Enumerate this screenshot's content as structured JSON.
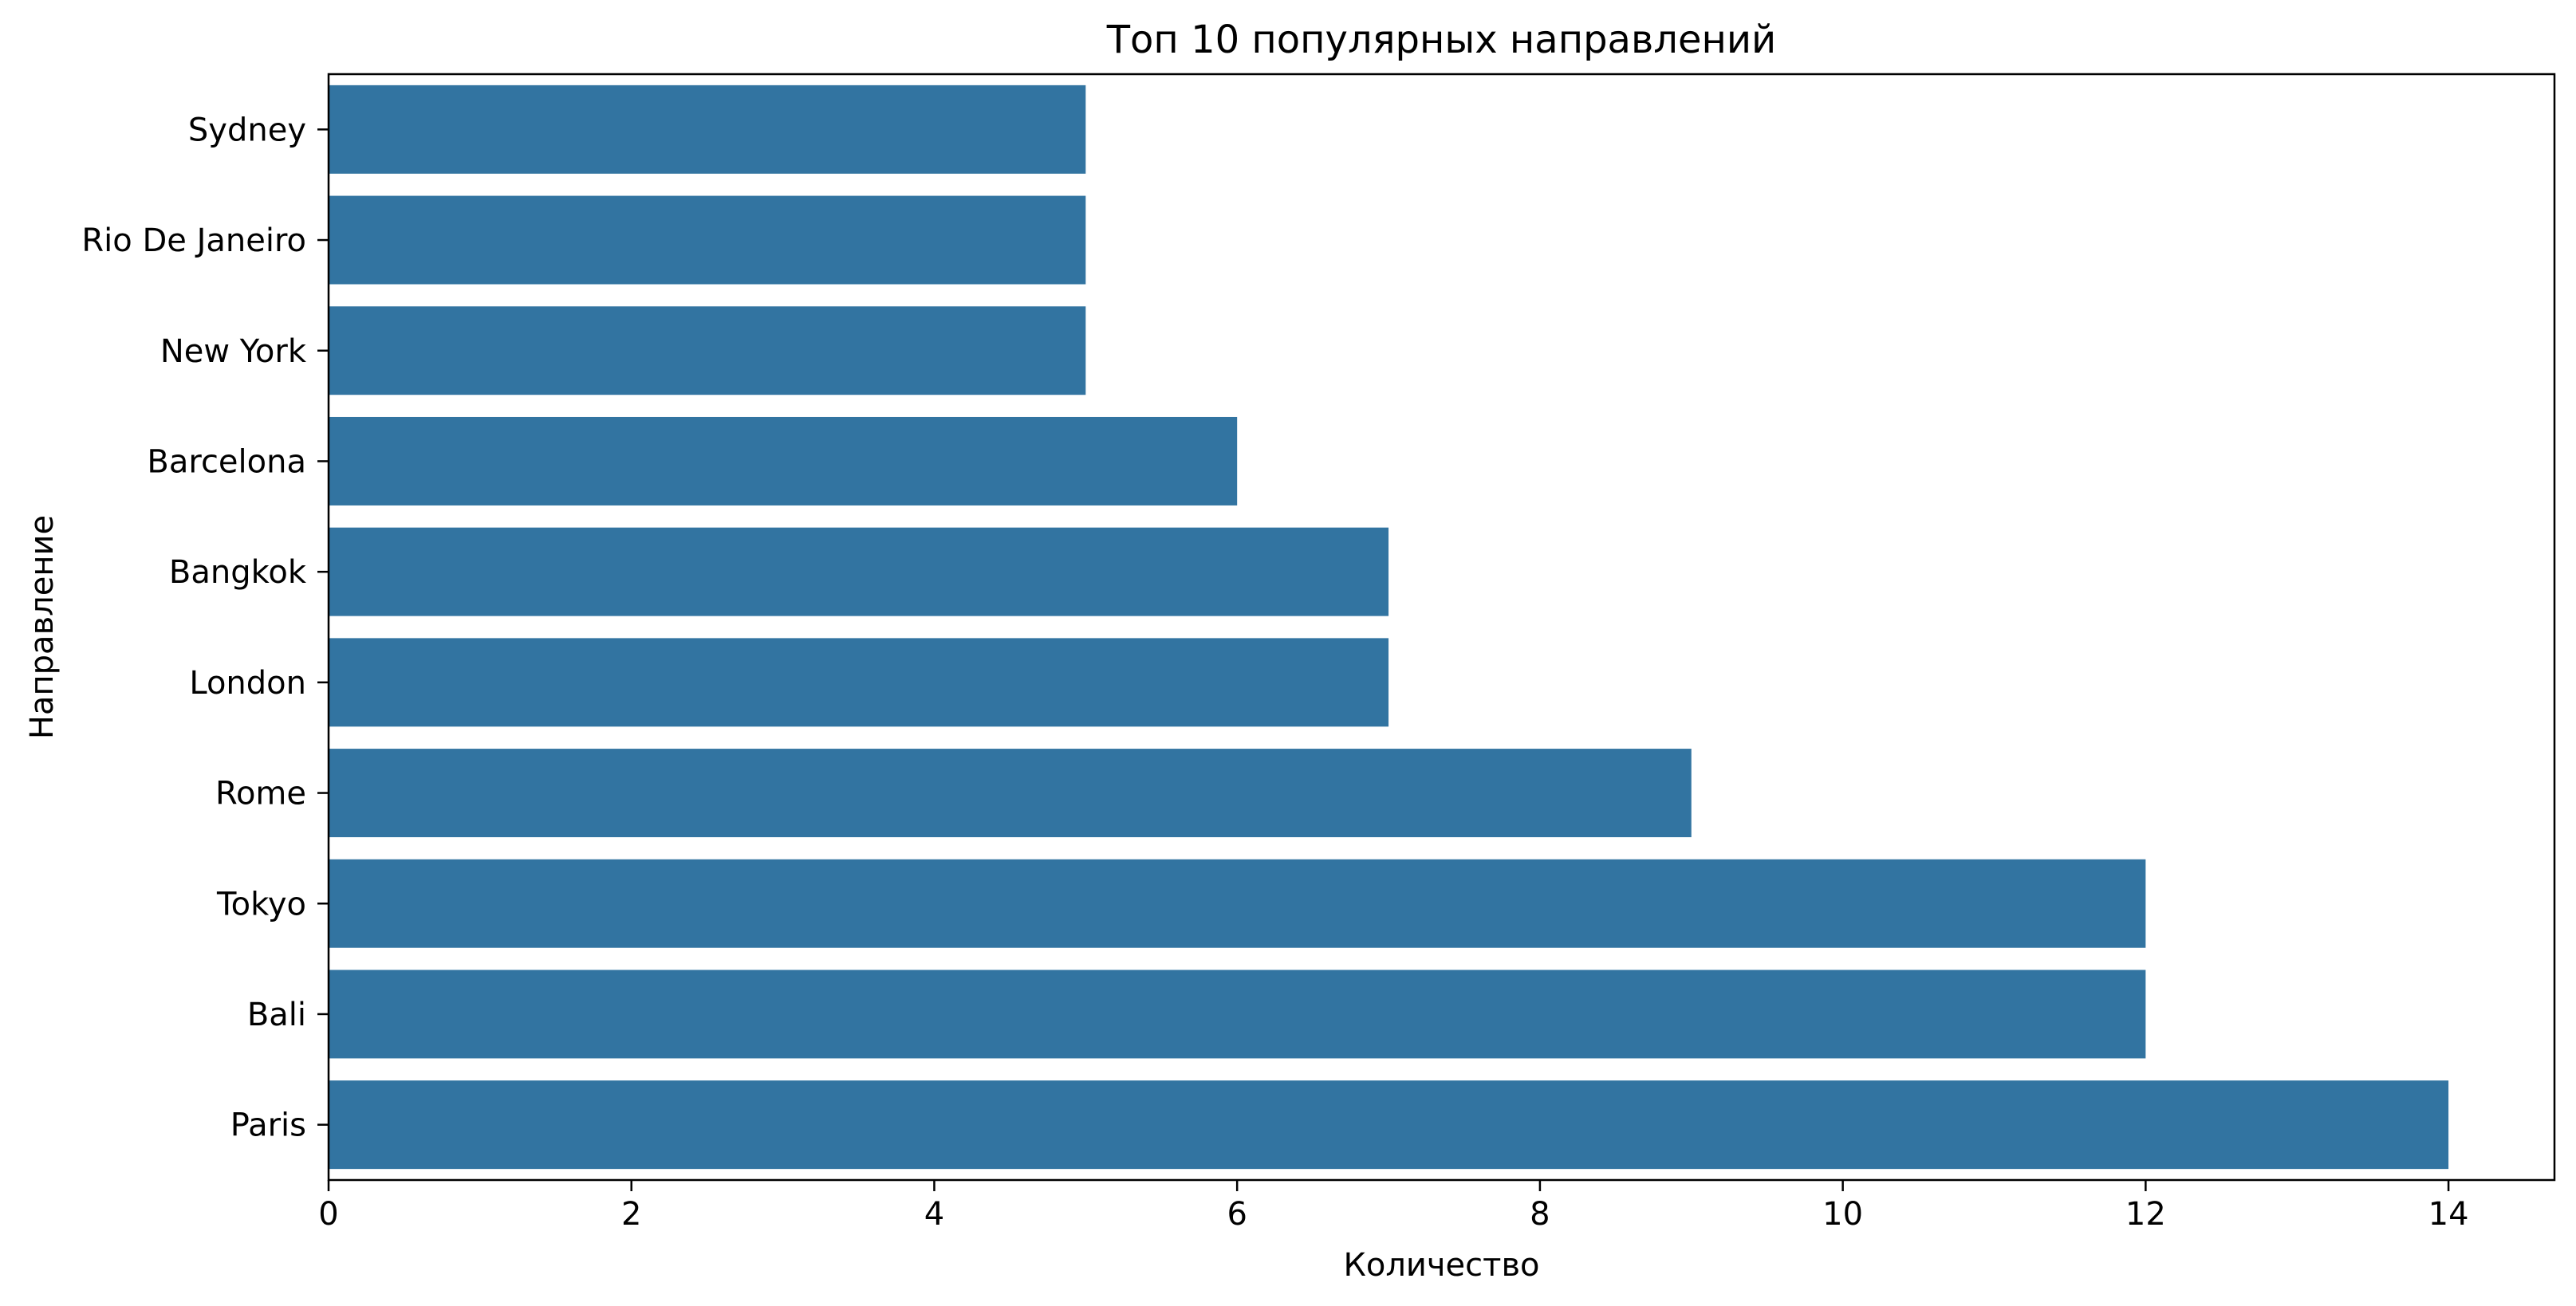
{
  "chart_data": {
    "type": "bar",
    "orientation": "horizontal",
    "title": "Топ 10 популярных направлений",
    "xlabel": "Количество",
    "ylabel": "Направление",
    "categories": [
      "Sydney",
      "Rio De Janeiro",
      "New York",
      "Barcelona",
      "Bangkok",
      "London",
      "Rome",
      "Tokyo",
      "Bali",
      "Paris"
    ],
    "values": [
      5,
      5,
      5,
      6,
      7,
      7,
      9,
      12,
      12,
      14
    ],
    "xlim": [
      0,
      14.7
    ],
    "xticks": [
      0,
      2,
      4,
      6,
      8,
      10,
      12,
      14
    ],
    "xtick_labels": [
      "0",
      "2",
      "4",
      "6",
      "8",
      "10",
      "12",
      "14"
    ],
    "grid": false,
    "legend": "none",
    "colors": {
      "bar": "#3274a1",
      "axis": "#000000",
      "text": "#000000",
      "background": "#ffffff"
    }
  }
}
